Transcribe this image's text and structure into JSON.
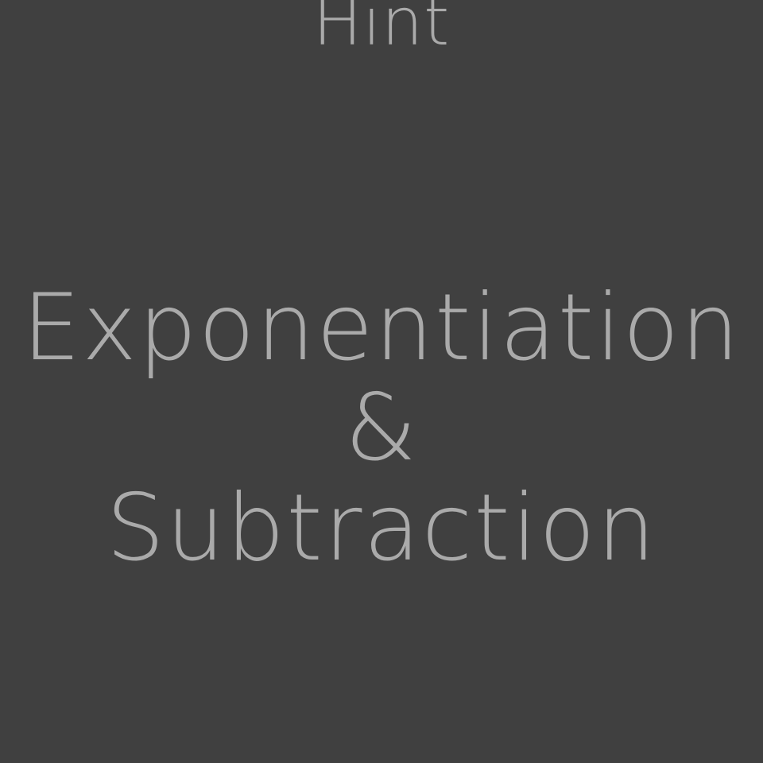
{
  "header": {
    "title": "Hint"
  },
  "hint": {
    "line1": "Exponentiation",
    "line2": "&",
    "line3": "Subtraction"
  },
  "colors": {
    "background": "#404040",
    "text": "#aaaaaa"
  }
}
